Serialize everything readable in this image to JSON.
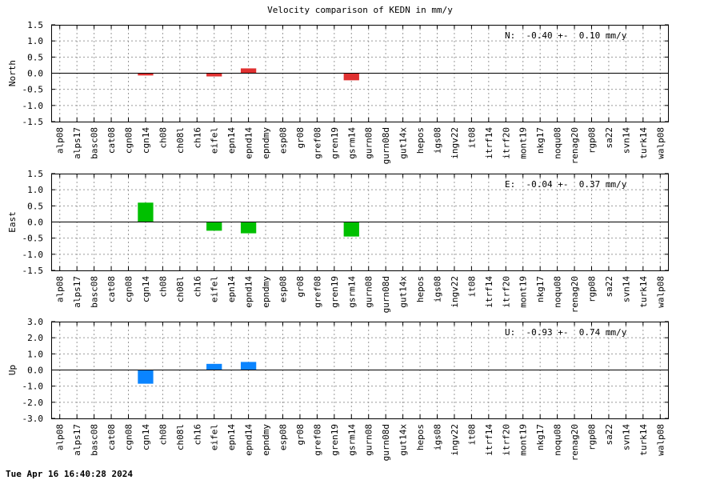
{
  "page": {
    "title": "Velocity comparison of KEDN in mm/y",
    "timestamp": "Tue Apr 16 16:40:28 2024"
  },
  "chart_data": [
    {
      "type": "bar",
      "component": "North",
      "ylabel": "North",
      "ylim": [
        -1.5,
        1.5
      ],
      "yticks": [
        -1.5,
        -1.0,
        -0.5,
        0.0,
        0.5,
        1.0,
        1.5
      ],
      "ytick_labels": [
        "-1.5",
        "-1.0",
        "-0.5",
        "0.0",
        "0.5",
        "1.0",
        "1.5"
      ],
      "color": "#e03131",
      "annotation": "N:  -0.40 +-  0.10 mm/y",
      "grid": true,
      "categories": [
        "alp08",
        "alps17",
        "basc08",
        "cat08",
        "cgn08",
        "cgn14",
        "ch08",
        "ch08l",
        "ch16",
        "eifel",
        "epn14",
        "epnd14",
        "epndmy",
        "esp08",
        "gr08",
        "gref08",
        "gren19",
        "gsrm14",
        "gurn08",
        "gurn08d",
        "gut14x",
        "hepos",
        "igs08",
        "ingv22",
        "it08",
        "itrf14",
        "itrf20",
        "mont19",
        "nkg17",
        "noqu08",
        "renag20",
        "rgp08",
        "sa22",
        "svn14",
        "turk14",
        "walp08"
      ],
      "values": [
        null,
        null,
        null,
        null,
        null,
        -0.07,
        null,
        null,
        null,
        -0.1,
        null,
        0.15,
        null,
        null,
        null,
        null,
        null,
        -0.22,
        null,
        null,
        null,
        null,
        null,
        null,
        null,
        null,
        null,
        null,
        null,
        null,
        null,
        null,
        null,
        null,
        null,
        null
      ]
    },
    {
      "type": "bar",
      "component": "East",
      "ylabel": "East",
      "ylim": [
        -1.5,
        1.5
      ],
      "yticks": [
        -1.5,
        -1.0,
        -0.5,
        0.0,
        0.5,
        1.0,
        1.5
      ],
      "ytick_labels": [
        "-1.5",
        "-1.0",
        "-0.5",
        "0.0",
        "0.5",
        "1.0",
        "1.5"
      ],
      "color": "#00c000",
      "annotation": "E:  -0.04 +-  0.37 mm/y",
      "grid": true,
      "categories": [
        "alp08",
        "alps17",
        "basc08",
        "cat08",
        "cgn08",
        "cgn14",
        "ch08",
        "ch08l",
        "ch16",
        "eifel",
        "epn14",
        "epnd14",
        "epndmy",
        "esp08",
        "gr08",
        "gref08",
        "gren19",
        "gsrm14",
        "gurn08",
        "gurn08d",
        "gut14x",
        "hepos",
        "igs08",
        "ingv22",
        "it08",
        "itrf14",
        "itrf20",
        "mont19",
        "nkg17",
        "noqu08",
        "renag20",
        "rgp08",
        "sa22",
        "svn14",
        "turk14",
        "walp08"
      ],
      "values": [
        null,
        null,
        null,
        null,
        null,
        0.6,
        null,
        null,
        null,
        -0.27,
        null,
        -0.35,
        null,
        null,
        null,
        null,
        null,
        -0.45,
        null,
        null,
        null,
        null,
        null,
        null,
        null,
        null,
        null,
        null,
        null,
        null,
        null,
        null,
        null,
        null,
        null,
        null
      ]
    },
    {
      "type": "bar",
      "component": "Up",
      "ylabel": "Up",
      "ylim": [
        -3.0,
        3.0
      ],
      "yticks": [
        -3.0,
        -2.0,
        -1.0,
        0.0,
        1.0,
        2.0,
        3.0
      ],
      "ytick_labels": [
        "-3.0",
        "-2.0",
        "-1.0",
        "0.0",
        "1.0",
        "2.0",
        "3.0"
      ],
      "color": "#0a84ff",
      "annotation": "U:  -0.93 +-  0.74 mm/y",
      "grid": true,
      "categories": [
        "alp08",
        "alps17",
        "basc08",
        "cat08",
        "cgn08",
        "cgn14",
        "ch08",
        "ch08l",
        "ch16",
        "eifel",
        "epn14",
        "epnd14",
        "epndmy",
        "esp08",
        "gr08",
        "gref08",
        "gren19",
        "gsrm14",
        "gurn08",
        "gurn08d",
        "gut14x",
        "hepos",
        "igs08",
        "ingv22",
        "it08",
        "itrf14",
        "itrf20",
        "mont19",
        "nkg17",
        "noqu08",
        "renag20",
        "rgp08",
        "sa22",
        "svn14",
        "turk14",
        "walp08"
      ],
      "values": [
        null,
        null,
        null,
        null,
        null,
        -0.85,
        null,
        null,
        null,
        0.38,
        null,
        0.5,
        null,
        null,
        null,
        null,
        null,
        null,
        null,
        null,
        null,
        null,
        null,
        null,
        null,
        null,
        null,
        null,
        null,
        null,
        null,
        null,
        null,
        null,
        null,
        null
      ]
    }
  ]
}
